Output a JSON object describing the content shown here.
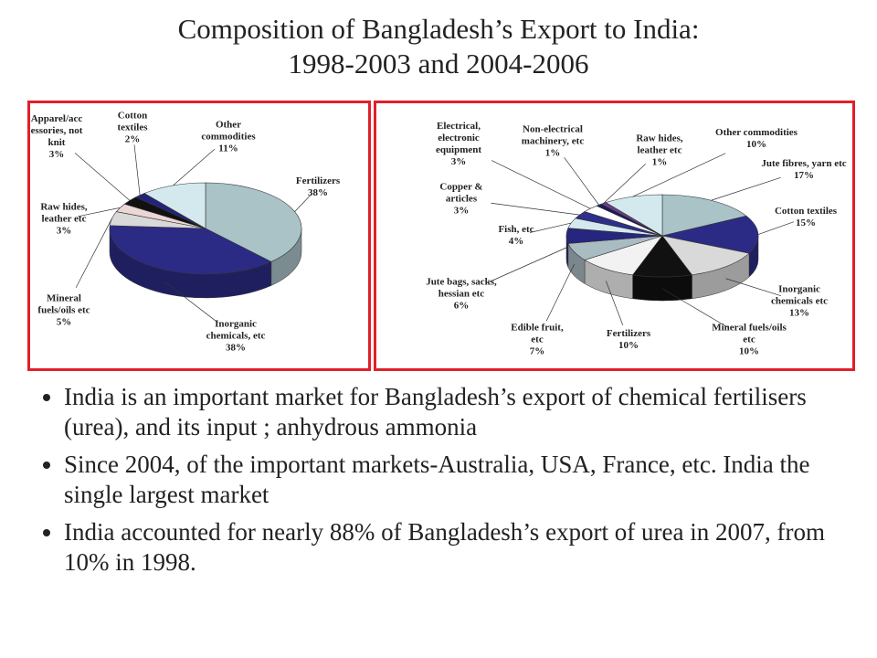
{
  "slide": {
    "title": [
      "Composition of Bangladesh’s Export to India:",
      "1998-2003  and 2004-2006"
    ],
    "bullets": [
      "India is an important market for Bangladesh’s export of chemical fertilisers (urea), and its input ; anhydrous ammonia",
      "Since 2004, of the important markets-Australia, USA, France, etc. India the single largest market",
      "India accounted for nearly 88% of Bangladesh’s export of urea in 2007,  from 10% in 1998."
    ]
  },
  "chart_data": [
    {
      "type": "pie",
      "categories": [
        "Fertilizers",
        "Inorganic chemicals, etc",
        "Mineral fuels/oils etc",
        "Raw hides, leather etc",
        "Apparel/accessories, not knit",
        "Cotton textiles",
        "Other commodities"
      ],
      "values": [
        38,
        38,
        5,
        3,
        3,
        2,
        11
      ],
      "value_labels": [
        "38%",
        "38%",
        "5%",
        "3%",
        "3%",
        "2%",
        "11%"
      ],
      "colors": [
        "#a9c3c7",
        "#2b2b86",
        "#d9d9d9",
        "#ecd6d6",
        "#111111",
        "#23237a",
        "#d4e9ee"
      ]
    },
    {
      "type": "pie",
      "categories": [
        "Jute fibres, yarn etc",
        "Cotton textiles",
        "Inorganic chemicals etc",
        "Mineral fuels/oils etc",
        "Fertilizers",
        "Edible fruit, etc",
        "Jute bags, sacks, hessian etc",
        "Fish, etc",
        "Copper & articles",
        "Electrical, electronic equipment",
        "Non-electrical machinery, etc",
        "Raw hides, leather etc",
        "Other commodities"
      ],
      "values": [
        17,
        15,
        13,
        10,
        10,
        7,
        6,
        4,
        3,
        3,
        1,
        1,
        10
      ],
      "value_labels": [
        "17%",
        "15%",
        "13%",
        "10%",
        "10%",
        "7%",
        "6%",
        "4%",
        "3%",
        "3%",
        "1%",
        "1%",
        "10%"
      ],
      "colors": [
        "#a9c3c7",
        "#2b2b86",
        "#d9d9d9",
        "#111111",
        "#f2f2f2",
        "#a9bcc2",
        "#26267e",
        "#d4e9ee",
        "#2e2e8c",
        "#ffffff",
        "#1a1a5e",
        "#6a3d8a",
        "#d4e9ee"
      ]
    }
  ]
}
